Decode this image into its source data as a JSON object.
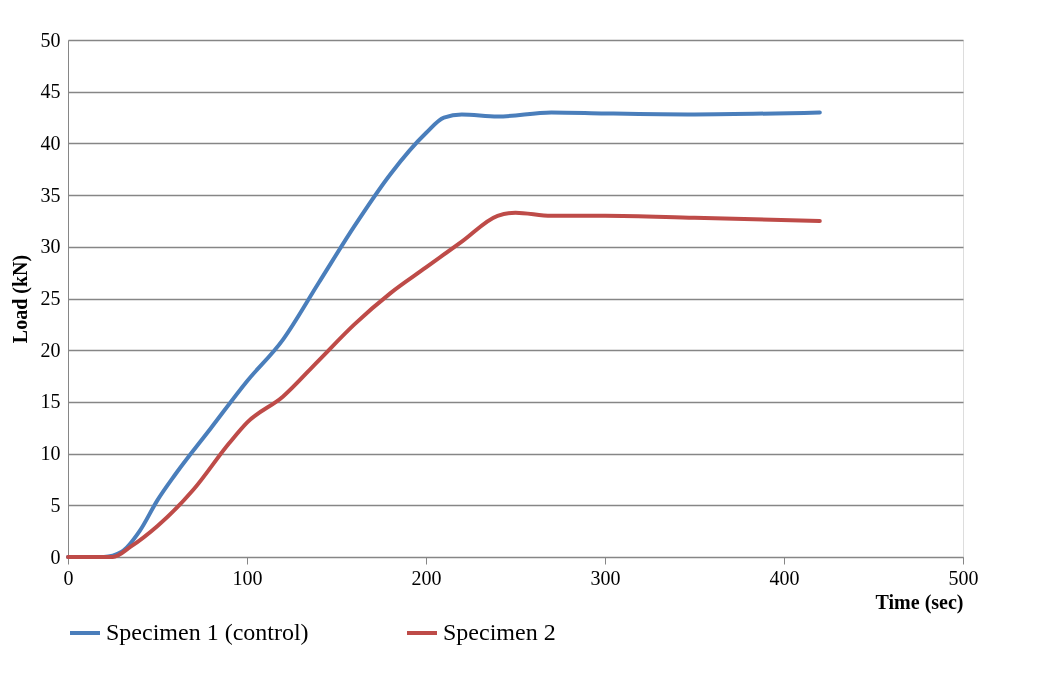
{
  "chart_data": {
    "type": "line",
    "xlabel": "Time (sec)",
    "ylabel": "Load (kN)",
    "xlim": [
      0,
      500
    ],
    "xticks": [
      0,
      100,
      200,
      300,
      400,
      500
    ],
    "ylim": [
      0,
      50
    ],
    "yticks": [
      0,
      5,
      10,
      15,
      20,
      25,
      30,
      35,
      40,
      45,
      50
    ],
    "grid": "y",
    "legend": "bottom",
    "marker": "none",
    "line_style": "solid",
    "series": [
      {
        "name": "Specimen 1 (control)",
        "color": "#4a7ebb",
        "x": [
          0,
          20,
          30,
          40,
          50,
          60,
          80,
          100,
          120,
          140,
          160,
          180,
          200,
          210,
          220,
          240,
          270,
          300,
          350,
          420
        ],
        "values": [
          0,
          0,
          0.5,
          2.5,
          5.5,
          8,
          12.5,
          17,
          21,
          26.5,
          32,
          37,
          41,
          42.5,
          42.8,
          42.6,
          43,
          42.9,
          42.8,
          43
        ]
      },
      {
        "name": "Specimen 2",
        "color": "#be4b48",
        "x": [
          0,
          25,
          35,
          50,
          70,
          90,
          100,
          120,
          140,
          160,
          180,
          200,
          220,
          240,
          250,
          270,
          300,
          350,
          420
        ],
        "values": [
          0,
          0,
          1,
          3,
          6.5,
          11,
          13,
          15.5,
          19,
          22.5,
          25.5,
          28,
          30.5,
          33,
          33.3,
          33,
          33,
          32.8,
          32.5
        ]
      }
    ]
  }
}
